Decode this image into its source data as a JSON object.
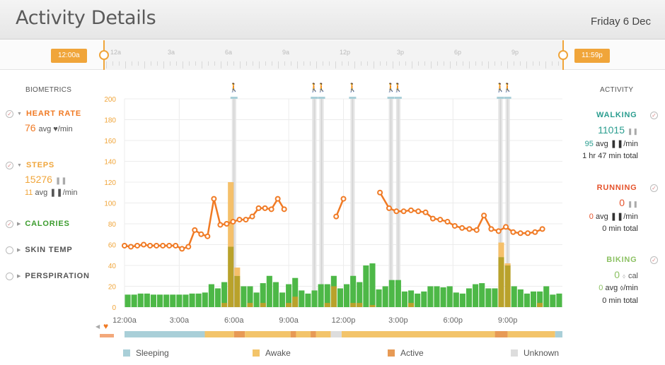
{
  "header": {
    "title": "Activity Details",
    "date": "Friday 6 Dec"
  },
  "timeline": {
    "start_label": "12:00a",
    "end_label": "11:59p",
    "tick_labels": [
      "12a",
      "3a",
      "6a",
      "9a",
      "12p",
      "3p",
      "6p",
      "9p"
    ]
  },
  "biometrics": {
    "heading": "BIOMETRICS",
    "heart_rate": {
      "label": "HEART RATE",
      "value": "76",
      "unit": "avg ♥/min"
    },
    "steps": {
      "label": "STEPS",
      "value": "15276",
      "unit_small": "11",
      "unit": "avg ❚❚/min"
    },
    "calories": {
      "label": "CALORIES"
    },
    "skin_temp": {
      "label": "SKIN TEMP"
    },
    "perspiration": {
      "label": "PERSPIRATION"
    }
  },
  "activity": {
    "heading": "ACTIVITY",
    "walking": {
      "label": "WALKING",
      "value": "11015",
      "avg_value": "95",
      "avg_unit": "avg ❚❚/min",
      "total": "1 hr 47 min total"
    },
    "running": {
      "label": "RUNNING",
      "value": "0",
      "avg_value": "0",
      "avg_unit": "avg ❚❚/min",
      "total": "0 min total"
    },
    "biking": {
      "label": "BIKING",
      "value": "0",
      "value_unit": "cal",
      "avg_value": "0",
      "avg_unit": "avg ⬨/min",
      "total": "0 min total"
    }
  },
  "legend": [
    {
      "label": "Sleeping",
      "color": "#a9cfd8"
    },
    {
      "label": "Awake",
      "color": "#f3c46a"
    },
    {
      "label": "Active",
      "color": "#e79a55"
    },
    {
      "label": "Unknown",
      "color": "#dddddd"
    }
  ],
  "colors": {
    "orange": "#f0a53a",
    "heart": "#f07a24",
    "green": "#4db847",
    "olive": "#b9a22b",
    "teal": "#2a9d8f",
    "red": "#e5532c",
    "lightgreen": "#8cc163"
  },
  "chart_data": {
    "type": "bar",
    "ylim": [
      0,
      200
    ],
    "y_ticks": [
      "0",
      "20",
      "40",
      "60",
      "80",
      "100",
      "120",
      "140",
      "160",
      "180",
      "200"
    ],
    "x_ticks": [
      "12:00a",
      "3:00a",
      "6:00a",
      "9:00a",
      "12:00p",
      "3:00p",
      "6:00p",
      "9:00p"
    ],
    "x_tick_hours": [
      0,
      3,
      6,
      9,
      12,
      15,
      18,
      21
    ],
    "x_range_hours": [
      0,
      24
    ],
    "steps_per_interval": [
      12,
      12,
      13,
      13,
      12,
      12,
      12,
      12,
      12,
      12,
      13,
      13,
      14,
      22,
      18,
      24,
      58,
      30,
      20,
      20,
      14,
      23,
      30,
      24,
      14,
      22,
      28,
      16,
      13,
      16,
      22,
      22,
      30,
      18,
      22,
      30,
      24,
      40,
      42,
      17,
      20,
      26,
      26,
      15,
      16,
      13,
      15,
      20,
      20,
      19,
      20,
      14,
      13,
      18,
      22,
      23,
      18,
      18,
      48,
      40,
      20,
      17,
      13,
      15,
      15,
      20,
      12,
      13
    ],
    "calories_per_interval": [
      0,
      0,
      0,
      0,
      0,
      0,
      0,
      0,
      0,
      0,
      0,
      0,
      0,
      0,
      0,
      4,
      120,
      38,
      0,
      4,
      0,
      4,
      0,
      0,
      0,
      4,
      10,
      0,
      0,
      0,
      0,
      4,
      20,
      0,
      0,
      4,
      4,
      0,
      2,
      0,
      0,
      0,
      0,
      0,
      4,
      0,
      0,
      0,
      0,
      0,
      0,
      0,
      0,
      0,
      0,
      0,
      0,
      0,
      62,
      42,
      0,
      0,
      0,
      0,
      4,
      0,
      0,
      0
    ],
    "heart_rate_series": [
      {
        "x": 0.0,
        "y": 59
      },
      {
        "x": 0.35,
        "y": 58
      },
      {
        "x": 0.7,
        "y": 59
      },
      {
        "x": 1.05,
        "y": 60
      },
      {
        "x": 1.4,
        "y": 59
      },
      {
        "x": 1.75,
        "y": 59
      },
      {
        "x": 2.1,
        "y": 59
      },
      {
        "x": 2.45,
        "y": 59
      },
      {
        "x": 2.8,
        "y": 59
      },
      {
        "x": 3.15,
        "y": 56
      },
      {
        "x": 3.5,
        "y": 58
      },
      {
        "x": 3.85,
        "y": 74
      },
      {
        "x": 4.2,
        "y": 70
      },
      {
        "x": 4.55,
        "y": 68
      },
      {
        "x": 4.9,
        "y": 104
      },
      {
        "x": 5.25,
        "y": 79
      },
      {
        "x": 5.6,
        "y": 80
      },
      {
        "x": 5.95,
        "y": 82
      },
      {
        "x": 6.3,
        "y": 84
      },
      {
        "x": 6.65,
        "y": 84
      },
      {
        "x": 7.0,
        "y": 87
      },
      {
        "x": 7.35,
        "y": 95
      },
      {
        "x": 7.7,
        "y": 95
      },
      {
        "x": 8.05,
        "y": 94
      },
      {
        "x": 8.4,
        "y": 104
      },
      {
        "x": 8.75,
        "y": 94
      },
      {
        "x": 11.6,
        "y": 87
      },
      {
        "x": 12.0,
        "y": 104
      },
      {
        "x": 14.0,
        "y": 110
      },
      {
        "x": 14.5,
        "y": 95
      },
      {
        "x": 14.9,
        "y": 92
      },
      {
        "x": 15.3,
        "y": 92
      },
      {
        "x": 15.7,
        "y": 93
      },
      {
        "x": 16.1,
        "y": 92
      },
      {
        "x": 16.5,
        "y": 91
      },
      {
        "x": 16.9,
        "y": 85
      },
      {
        "x": 17.3,
        "y": 84
      },
      {
        "x": 17.7,
        "y": 82
      },
      {
        "x": 18.1,
        "y": 78
      },
      {
        "x": 18.5,
        "y": 76
      },
      {
        "x": 18.9,
        "y": 75
      },
      {
        "x": 19.3,
        "y": 74
      },
      {
        "x": 19.7,
        "y": 88
      },
      {
        "x": 20.1,
        "y": 75
      },
      {
        "x": 20.5,
        "y": 73
      },
      {
        "x": 20.9,
        "y": 77
      },
      {
        "x": 21.3,
        "y": 72
      },
      {
        "x": 21.7,
        "y": 71
      },
      {
        "x": 22.1,
        "y": 71
      },
      {
        "x": 22.5,
        "y": 72
      },
      {
        "x": 22.9,
        "y": 75
      }
    ],
    "walk_markers_hours": [
      6.0,
      10.4,
      10.8,
      12.5,
      14.6,
      15.0,
      20.6,
      21.0
    ],
    "state_bar": [
      {
        "from": 0,
        "to": 4.4,
        "state": "Sleeping"
      },
      {
        "from": 4.4,
        "to": 6.0,
        "state": "Awake"
      },
      {
        "from": 6.0,
        "to": 6.6,
        "state": "Active"
      },
      {
        "from": 6.6,
        "to": 9.1,
        "state": "Awake"
      },
      {
        "from": 9.1,
        "to": 9.4,
        "state": "Active"
      },
      {
        "from": 9.4,
        "to": 10.2,
        "state": "Awake"
      },
      {
        "from": 10.2,
        "to": 10.5,
        "state": "Active"
      },
      {
        "from": 10.5,
        "to": 11.3,
        "state": "Awake"
      },
      {
        "from": 11.3,
        "to": 11.9,
        "state": "Unknown"
      },
      {
        "from": 11.9,
        "to": 20.3,
        "state": "Awake"
      },
      {
        "from": 20.3,
        "to": 21.0,
        "state": "Active"
      },
      {
        "from": 21.0,
        "to": 23.6,
        "state": "Awake"
      },
      {
        "from": 23.6,
        "to": 24,
        "state": "Sleeping"
      }
    ]
  }
}
